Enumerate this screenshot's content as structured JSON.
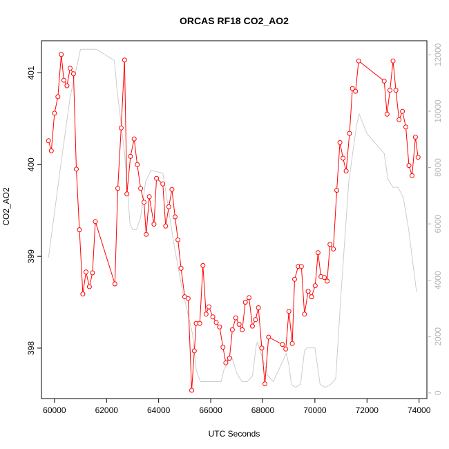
{
  "chart_data": {
    "type": "line",
    "title": "ORCAS RF18 CO2_AO2",
    "xlabel": "UTC Seconds",
    "ylabel": "CO2_AO2",
    "xlim": [
      59500,
      74300
    ],
    "ylim": [
      397.45,
      401.35
    ],
    "y2lim": [
      -200,
      12500
    ],
    "x_ticks": [
      60000,
      62000,
      64000,
      66000,
      68000,
      70000,
      72000,
      74000
    ],
    "y_ticks": [
      398,
      399,
      400,
      401
    ],
    "y2_ticks": [
      0,
      2000,
      4000,
      6000,
      8000,
      10000,
      12000
    ],
    "grid": false,
    "series": [
      {
        "name": "",
        "axis": "left",
        "style": "line-with-open-circles",
        "color": "#ff0000",
        "x": [
          59770,
          59880,
          60000,
          60130,
          60260,
          60360,
          60480,
          60600,
          60730,
          60840,
          60960,
          61090,
          61210,
          61340,
          61460,
          61570,
          62320,
          62430,
          62560,
          62690,
          62780,
          62920,
          63060,
          63180,
          63310,
          63440,
          63520,
          63640,
          63820,
          63920,
          64160,
          64270,
          64390,
          64510,
          64630,
          64740,
          64860,
          65000,
          65130,
          65270,
          65370,
          65440,
          65580,
          65700,
          65820,
          65930,
          66080,
          66210,
          66340,
          66470,
          66580,
          66720,
          66830,
          66960,
          67090,
          67210,
          67330,
          67470,
          67600,
          67720,
          67830,
          67960,
          68080,
          68220,
          68750,
          68880,
          69000,
          69130,
          69220,
          69360,
          69480,
          69600,
          69740,
          69870,
          70010,
          70120,
          70230,
          70360,
          70470,
          70580,
          70710,
          70840,
          70960,
          71080,
          71200,
          71330,
          71440,
          71560,
          71680,
          72660,
          72770,
          72880,
          73000,
          73110,
          73230,
          73360,
          73490,
          73610,
          73730,
          73860,
          73960
        ],
        "y": [
          400.26,
          400.15,
          400.56,
          400.74,
          401.2,
          400.92,
          400.86,
          401.05,
          400.99,
          399.95,
          399.29,
          398.59,
          398.83,
          398.67,
          398.82,
          399.38,
          398.7,
          399.74,
          400.4,
          401.14,
          399.68,
          400.09,
          400.28,
          400.0,
          399.74,
          399.59,
          399.24,
          399.65,
          399.35,
          399.85,
          399.79,
          399.33,
          399.54,
          399.73,
          399.43,
          399.18,
          398.87,
          398.56,
          398.54,
          397.54,
          397.97,
          398.27,
          398.27,
          398.9,
          398.37,
          398.45,
          398.34,
          398.28,
          398.23,
          398.01,
          397.84,
          397.89,
          398.2,
          398.33,
          398.26,
          398.2,
          398.5,
          398.55,
          398.24,
          398.31,
          398.44,
          398.0,
          397.61,
          398.12,
          398.04,
          397.99,
          398.4,
          398.05,
          398.75,
          398.89,
          398.89,
          398.37,
          398.62,
          398.56,
          398.68,
          399.04,
          398.78,
          398.77,
          398.73,
          399.13,
          399.08,
          399.72,
          400.24,
          400.07,
          399.93,
          400.34,
          400.83,
          400.8,
          401.13,
          400.91,
          400.55,
          400.81,
          401.13,
          400.81,
          400.49,
          400.58,
          400.41,
          399.99,
          399.88,
          400.3,
          400.08
        ]
      },
      {
        "name": "",
        "axis": "right",
        "style": "line",
        "color": "#cccccc",
        "x": [
          59770,
          60200,
          60600,
          61000,
          61300,
          61600,
          62300,
          62400,
          62690,
          62780,
          62900,
          63000,
          63150,
          63300,
          63500,
          63700,
          64160,
          64300,
          64600,
          64900,
          65300,
          65450,
          65600,
          65800,
          65850,
          66400,
          66500,
          66700,
          66800,
          67000,
          67200,
          67400,
          67600,
          67750,
          67800,
          68000,
          68200,
          68400,
          68800,
          68900,
          69000,
          69100,
          69250,
          69450,
          69600,
          69700,
          69800,
          70000,
          70200,
          70400,
          70600,
          70800,
          71000,
          71300,
          71600,
          71700,
          72000,
          72660,
          72800,
          73000,
          73200,
          73400,
          73600,
          73900
        ],
        "y": [
          4800,
          7800,
          10500,
          12200,
          12200,
          12200,
          11800,
          10800,
          8500,
          7500,
          6000,
          5800,
          5800,
          6200,
          7500,
          7900,
          7800,
          7000,
          5200,
          3700,
          2100,
          800,
          400,
          400,
          400,
          400,
          800,
          1200,
          1300,
          700,
          400,
          400,
          600,
          1700,
          1800,
          1200,
          600,
          400,
          1200,
          1400,
          1000,
          300,
          200,
          300,
          1500,
          1600,
          1600,
          1600,
          300,
          200,
          300,
          500,
          3500,
          7500,
          9500,
          9900,
          9200,
          8500,
          7600,
          7300,
          7300,
          6900,
          5800,
          3600
        ]
      }
    ]
  }
}
